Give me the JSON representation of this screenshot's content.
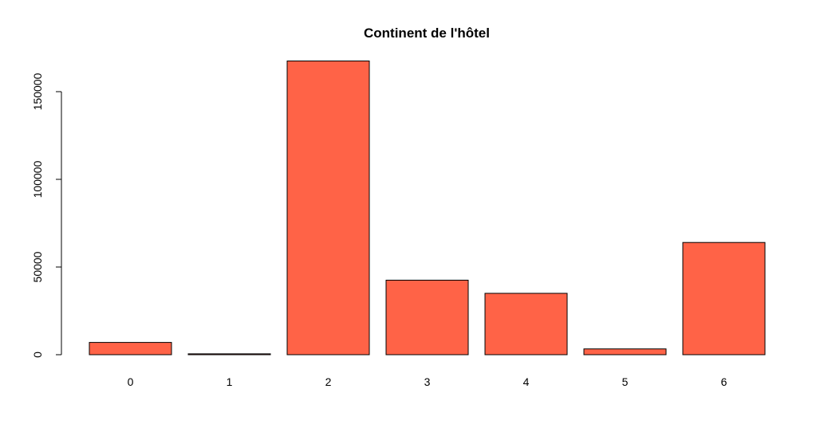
{
  "chart_data": {
    "type": "bar",
    "title": "Continent de l'hôtel",
    "xlabel": "",
    "ylabel": "",
    "categories": [
      "0",
      "1",
      "2",
      "3",
      "4",
      "5",
      "6"
    ],
    "values": [
      7000,
      500,
      167500,
      42500,
      35000,
      3300,
      64000
    ],
    "ylim": [
      0,
      170000
    ],
    "yticks": [
      0,
      50000,
      100000,
      150000
    ],
    "ytick_labels": [
      "0",
      "50000",
      "100000",
      "150000"
    ],
    "bar_color": "#FF6347",
    "grid": false,
    "legend": "none"
  }
}
